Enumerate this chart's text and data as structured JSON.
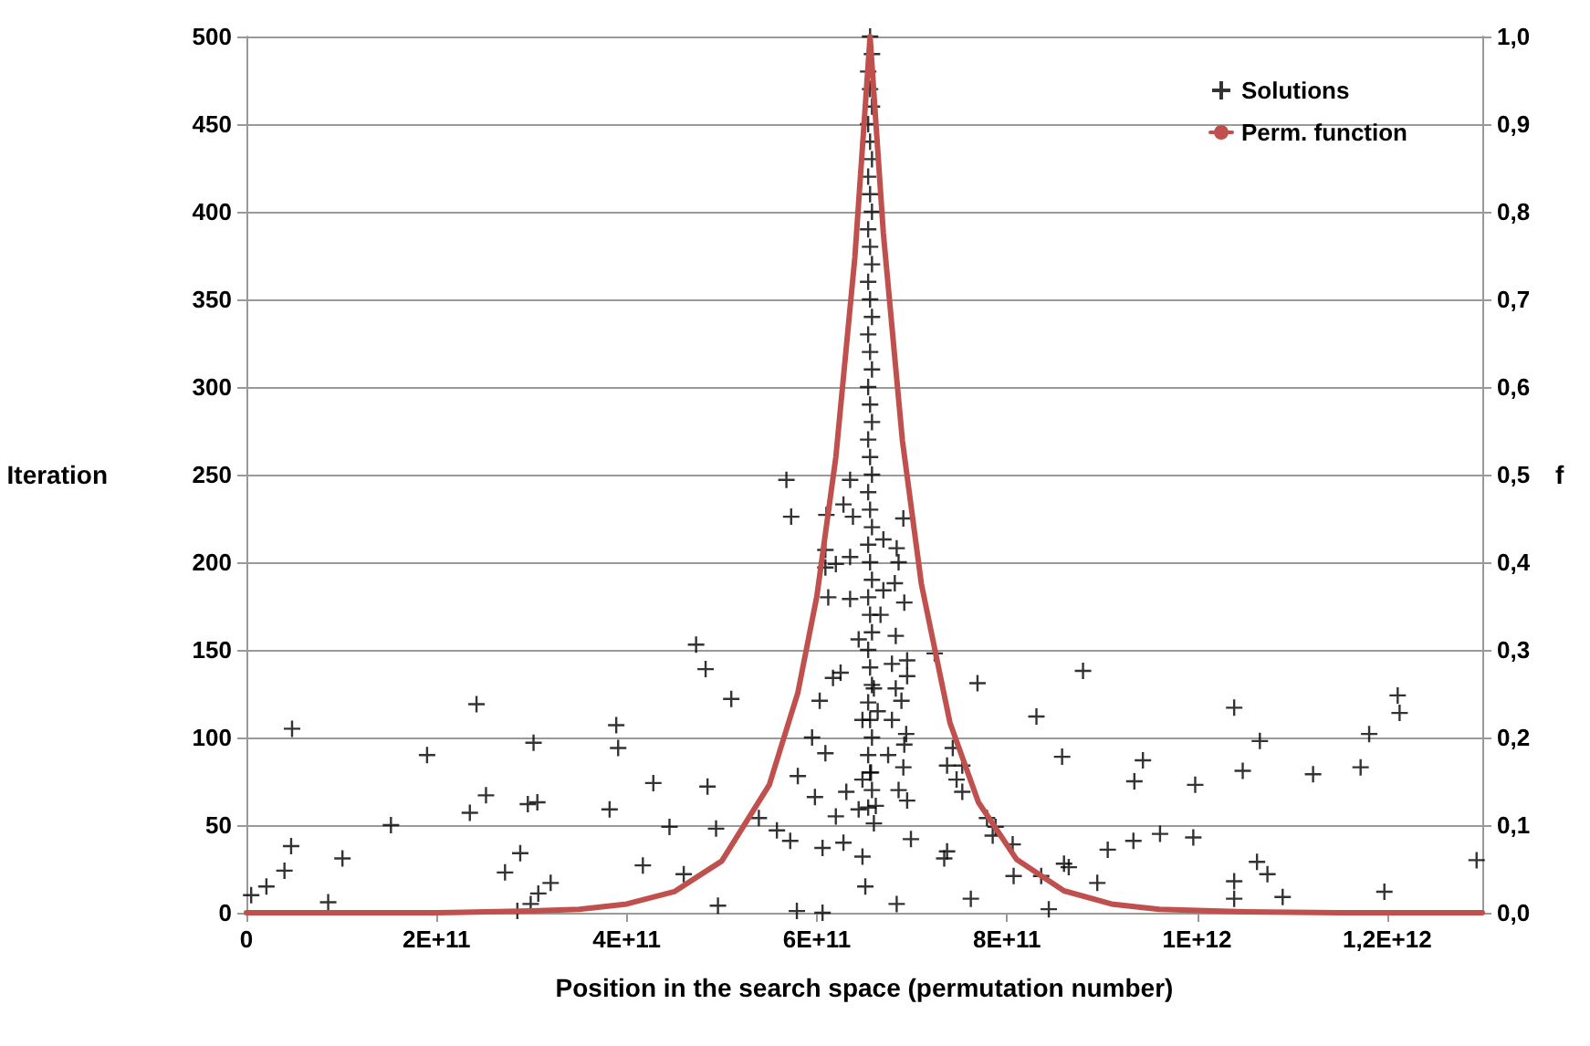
{
  "chart_data": {
    "type": "scatter",
    "xlabel": "Position in the search space (permutation number)",
    "ylabel": "Iteration",
    "y2label": "f",
    "xlim": [
      0,
      1300000000000
    ],
    "xticks": [
      0,
      {
        "value": 200000000000,
        "label": "2E+11"
      },
      {
        "value": 400000000000,
        "label": "4E+11"
      },
      {
        "value": 600000000000,
        "label": "6E+11"
      },
      {
        "value": 800000000000,
        "label": "8E+11"
      },
      {
        "value": 1000000000000,
        "label": "1E+12"
      },
      {
        "value": 1200000000000,
        "label": "1,2E+12"
      }
    ],
    "ylim": [
      0,
      500
    ],
    "yticks": [
      0,
      50,
      100,
      150,
      200,
      250,
      300,
      350,
      400,
      450,
      500
    ],
    "y2lim": [
      0,
      1
    ],
    "y2ticks": [
      {
        "value": 0,
        "label": "0,0"
      },
      {
        "value": 0.1,
        "label": "0,1"
      },
      {
        "value": 0.2,
        "label": "0,2"
      },
      {
        "value": 0.3,
        "label": "0,3"
      },
      {
        "value": 0.4,
        "label": "0,4"
      },
      {
        "value": 0.5,
        "label": "0,5"
      },
      {
        "value": 0.6,
        "label": "0,6"
      },
      {
        "value": 0.7,
        "label": "0,7"
      },
      {
        "value": 0.8,
        "label": "0,8"
      },
      {
        "value": 0.9,
        "label": "0,9"
      },
      {
        "value": 1,
        "label": "1,0"
      }
    ],
    "grid": "y",
    "legend": "top right",
    "series": [
      {
        "name": "Solutions",
        "marker": "cross",
        "color": "#000000",
        "x": [
          5000000000.0,
          21000000000.0,
          40000000000.0,
          47000000000.0,
          48000000000.0,
          86000000000.0,
          101000000000.0,
          152000000000.0,
          190000000000.0,
          242000000000.0,
          235000000000.0,
          252000000000.0,
          272000000000.0,
          288000000000.0,
          285000000000.0,
          296000000000.0,
          306000000000.0,
          302000000000.0,
          299000000000.0,
          307000000000.0,
          320000000000.0,
          382000000000.0,
          389000000000.0,
          391000000000.0,
          417000000000.0,
          428000000000.0,
          445000000000.0,
          460000000000.0,
          473000000000.0,
          483000000000.0,
          485000000000.0,
          494000000000.0,
          496000000000.0,
          510000000000.0,
          539000000000.0,
          558000000000.0,
          568000000000.0,
          573000000000.0,
          635000000000.0,
          628000000000.0,
          610000000000.0,
          638000000000.0,
          691000000000.0,
          609000000000.0,
          609000000000.0,
          620000000000.0,
          635000000000.0,
          670000000000.0,
          684000000000.0,
          686000000000.0,
          682000000000.0,
          692000000000.0,
          612000000000.0,
          635000000000.0,
          670000000000.0,
          667000000000.0,
          683000000000.0,
          644000000000.0,
          724000000000.0,
          695000000000.0,
          679000000000.0,
          625000000000.0,
          617000000000.0,
          769000000000.0,
          880000000000.0,
          695000000000.0,
          683000000000.0,
          660000000000.0,
          689000000000.0,
          603000000000.0,
          679000000000.0,
          664000000000.0,
          648000000000.0,
          831000000000.0,
          694000000000.0,
          692000000000.0,
          595000000000.0,
          609000000000.0,
          743000000000.0,
          737000000000.0,
          753000000000.0,
          675000000000.0,
          691000000000.0,
          858000000000.0,
          580000000000.0,
          657000000000.0,
          648000000000.0,
          747000000000.0,
          631000000000.0,
          598000000000.0,
          686000000000.0,
          695000000000.0,
          753000000000.0,
          620000000000.0,
          644000000000.0,
          662000000000.0,
          660000000000.0,
          572000000000.0,
          606000000000.0,
          628000000000.0,
          648000000000.0,
          699000000000.0,
          734000000000.0,
          737000000000.0,
          779000000000.0,
          788000000000.0,
          785000000000.0,
          806000000000.0,
          807000000000.0,
          836000000000.0,
          860000000000.0,
          651000000000.0,
          684000000000.0,
          762000000000.0,
          844000000000.0,
          579000000000.0,
          606000000000.0,
          865000000000.0,
          895000000000.0,
          906000000000.0,
          933000000000.0,
          961000000000.0,
          996000000000.0,
          934000000000.0,
          943000000000.0,
          998000000000.0,
          1039000000000.0,
          1048000000000.0,
          1066000000000.0,
          1039000000000.0,
          1039000000000.0,
          1063000000000.0,
          1074000000000.0,
          1090000000000.0,
          1122000000000.0,
          1172000000000.0,
          1181000000000.0,
          1211000000000.0,
          1213000000000.0,
          1197000000000.0,
          1294000000000.0,
          654000000000.0,
          658000000000.0,
          656000000000.0,
          654000000000.0,
          658000000000.0,
          656000000000.0,
          654000000000.0,
          658000000000.0,
          656000000000.0,
          654000000000.0,
          658000000000.0,
          656000000000.0,
          654000000000.0,
          658000000000.0,
          656000000000.0,
          654000000000.0,
          658000000000.0,
          656000000000.0,
          654000000000.0,
          658000000000.0,
          656000000000.0,
          654000000000.0,
          658000000000.0,
          656000000000.0,
          654000000000.0,
          658000000000.0,
          656000000000.0,
          654000000000.0,
          658000000000.0,
          656000000000.0,
          654000000000.0,
          658000000000.0,
          656000000000.0,
          654000000000.0,
          658000000000.0,
          656000000000.0,
          654000000000.0,
          658000000000.0,
          656000000000.0,
          654000000000.0,
          658000000000.0,
          656000000000.0,
          654000000000.0,
          658000000000.0,
          656000000000.0
        ],
        "values": [
          10,
          15,
          24,
          38,
          105,
          6,
          31,
          50,
          90,
          119,
          57,
          67,
          23,
          34,
          1,
          62,
          63,
          97,
          5,
          11,
          17,
          59,
          107,
          94,
          27,
          74,
          49,
          22,
          153,
          139,
          72,
          48,
          4,
          122,
          54,
          47,
          247,
          226,
          247,
          233,
          227,
          226,
          225,
          207,
          197,
          199,
          203,
          213,
          208,
          200,
          188,
          177,
          180,
          179,
          184,
          170,
          158,
          156,
          148,
          144,
          142,
          137,
          134,
          131,
          138,
          135,
          128,
          128,
          121,
          121,
          110,
          115,
          110,
          112,
          102,
          96,
          100,
          91,
          94,
          84,
          84,
          90,
          83,
          89,
          78,
          80,
          76,
          76,
          69,
          66,
          70,
          64,
          69,
          55,
          59,
          61,
          51,
          41,
          37,
          40,
          32,
          42,
          31,
          35,
          54,
          49,
          44,
          39,
          21,
          21,
          28,
          15,
          5,
          8,
          2,
          1,
          0,
          26,
          17,
          36,
          41,
          45,
          43,
          75,
          87,
          73,
          117,
          81,
          98,
          18,
          8,
          29,
          22,
          9,
          79,
          83,
          102,
          124,
          114,
          12,
          30,
          60,
          70,
          80,
          90,
          100,
          110,
          120,
          130,
          140,
          150,
          160,
          170,
          180,
          190,
          200,
          210,
          220,
          230,
          240,
          250,
          260,
          270,
          280,
          290,
          300,
          310,
          320,
          330,
          340,
          350,
          360,
          370,
          380,
          390,
          400,
          410,
          420,
          430,
          440,
          450,
          460,
          470,
          480,
          490,
          500
        ]
      },
      {
        "name": "Perm. function",
        "type": "line",
        "marker": "none",
        "axis": "y2",
        "color": "#c0504d",
        "x": [
          0,
          100000000000.0,
          200000000000.0,
          300000000000.0,
          350000000000.0,
          400000000000.0,
          450000000000.0,
          500000000000.0,
          550000000000.0,
          580000000000.0,
          600000000000.0,
          620000000000.0,
          640000000000.0,
          656000000000.0,
          670000000000.0,
          690000000000.0,
          710000000000.0,
          740000000000.0,
          770000000000.0,
          810000000000.0,
          860000000000.0,
          910000000000.0,
          960000000000.0,
          1050000000000.0,
          1150000000000.0,
          1300000000000.0
        ],
        "values": [
          0,
          0,
          0,
          0.002,
          0.004,
          0.01,
          0.024,
          0.059,
          0.146,
          0.251,
          0.361,
          0.52,
          0.748,
          1,
          0.775,
          0.539,
          0.375,
          0.217,
          0.126,
          0.061,
          0.025,
          0.01,
          0.004,
          0.001,
          0,
          0
        ]
      }
    ]
  }
}
